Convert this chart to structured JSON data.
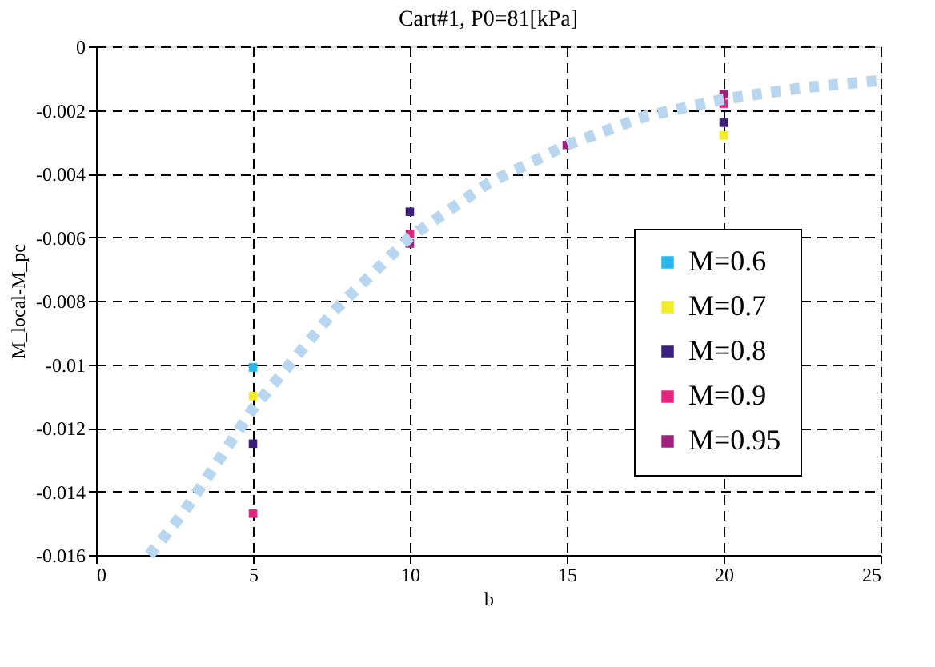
{
  "chart_data": {
    "type": "scatter",
    "title": "Cart#1, P0=81[kPa]",
    "xlabel": "b",
    "ylabel": "M_local-M_pc",
    "x": [
      5,
      10,
      15,
      20
    ],
    "series": [
      {
        "name": "M=0.6",
        "color": "#29b6e8",
        "values": [
          -0.0101,
          null,
          null,
          null
        ]
      },
      {
        "name": "M=0.7",
        "color": "#f2ec2a",
        "values": [
          -0.011,
          null,
          null,
          -0.0028
        ]
      },
      {
        "name": "M=0.8",
        "color": "#3c1e7c",
        "values": [
          -0.0125,
          -0.0052,
          null,
          -0.0024
        ]
      },
      {
        "name": "M=0.9",
        "color": "#e4257f",
        "values": [
          -0.0147,
          -0.0059,
          null,
          -0.0018
        ]
      },
      {
        "name": "M=0.95",
        "color": "#a0207e",
        "values": [
          null,
          -0.0062,
          -0.0031,
          -0.0015
        ]
      },
      {
        "type": "line",
        "color": "#b9d6f0",
        "line_style": "dotted",
        "marker": "none",
        "x": [
          1.7,
          2.8,
          5,
          7.6,
          10,
          12.5,
          15,
          17.5,
          20,
          22.5,
          25
        ],
        "values": [
          -0.016,
          -0.01465,
          -0.0114,
          -0.0083,
          -0.006,
          -0.0043,
          -0.0031,
          -0.0022,
          -0.00166,
          -0.0013,
          -0.00107
        ]
      }
    ],
    "xlim": [
      0,
      25
    ],
    "xticks": [
      0,
      5,
      10,
      15,
      20,
      25
    ],
    "ylim": [
      -0.016,
      0
    ],
    "yticks": [
      0,
      -0.002,
      -0.004,
      -0.006,
      -0.008,
      -0.01,
      -0.012,
      -0.014,
      -0.016
    ],
    "grid": true,
    "legend": "bottom right",
    "marker": "square"
  }
}
